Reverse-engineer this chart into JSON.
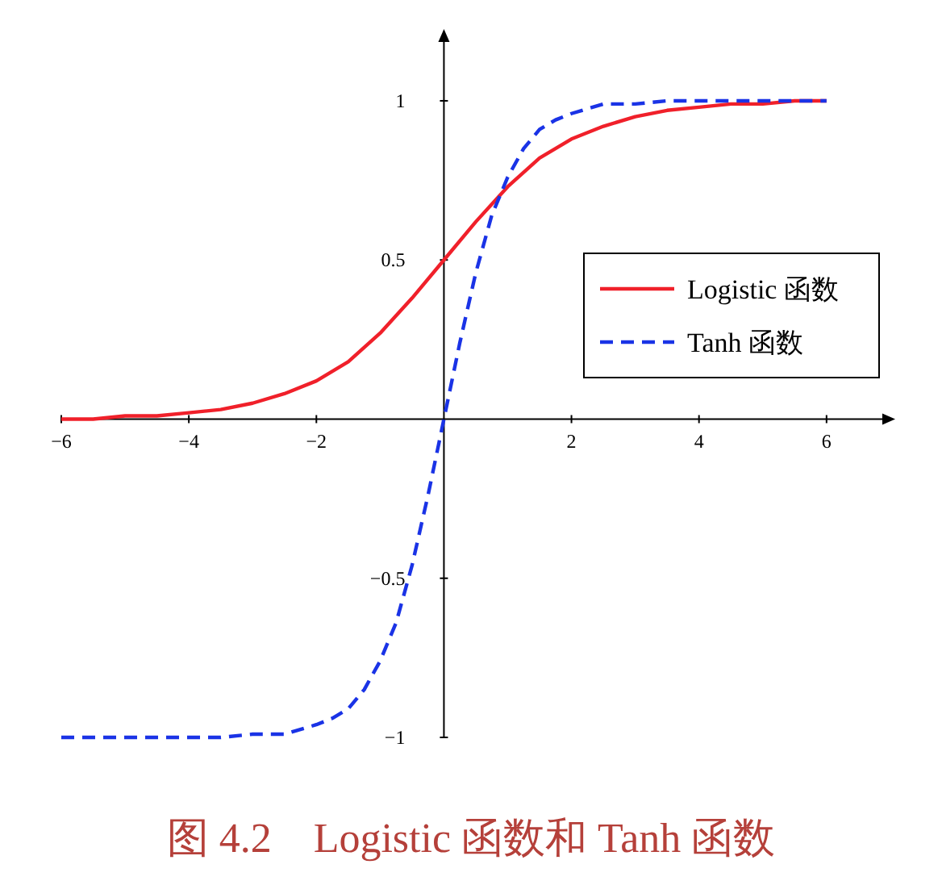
{
  "chart_data": {
    "type": "line",
    "xlim": [
      -6,
      6.9
    ],
    "ylim": [
      -1,
      1.19
    ],
    "xticks": [
      {
        "value": -6,
        "label": "−6"
      },
      {
        "value": -4,
        "label": "−4"
      },
      {
        "value": -2,
        "label": "−2"
      },
      2,
      4,
      6
    ],
    "yticks": [
      {
        "value": -1,
        "label": "−1"
      },
      {
        "value": -0.5,
        "label": "−0.5"
      },
      0.5,
      1
    ],
    "legend": "right",
    "series": [
      {
        "name": "Logistic 函数",
        "color": "#f0202a",
        "line_style": "solid",
        "x": [
          -6,
          -5.5,
          -5,
          -4.5,
          -4,
          -3.5,
          -3,
          -2.5,
          -2,
          -1.5,
          -1,
          -0.5,
          0,
          0.5,
          1,
          1.5,
          2,
          2.5,
          3,
          3.5,
          4,
          4.5,
          5,
          5.5,
          6
        ],
        "values": [
          0.0,
          0.0,
          0.01,
          0.01,
          0.02,
          0.03,
          0.05,
          0.08,
          0.12,
          0.18,
          0.27,
          0.38,
          0.5,
          0.62,
          0.73,
          0.82,
          0.88,
          0.92,
          0.95,
          0.97,
          0.98,
          0.99,
          0.99,
          1.0,
          1.0
        ]
      },
      {
        "name": "Tanh 函数",
        "color": "#1a33e6",
        "line_style": "dashed",
        "x": [
          -6,
          -5,
          -4,
          -3.5,
          -3,
          -2.5,
          -2,
          -1.75,
          -1.5,
          -1.25,
          -1,
          -0.75,
          -0.5,
          -0.25,
          0,
          0.25,
          0.5,
          0.75,
          1,
          1.25,
          1.5,
          1.75,
          2,
          2.5,
          3,
          3.5,
          4,
          5,
          6
        ],
        "values": [
          -1,
          -1,
          -1,
          -1,
          -0.99,
          -0.99,
          -0.96,
          -0.94,
          -0.91,
          -0.85,
          -0.76,
          -0.64,
          -0.46,
          -0.24,
          0,
          0.24,
          0.46,
          0.64,
          0.76,
          0.85,
          0.91,
          0.94,
          0.96,
          0.99,
          0.99,
          1,
          1,
          1,
          1
        ]
      }
    ],
    "annotations": [
      "图 4.2　Logistic 函数和 Tanh 函数"
    ]
  }
}
